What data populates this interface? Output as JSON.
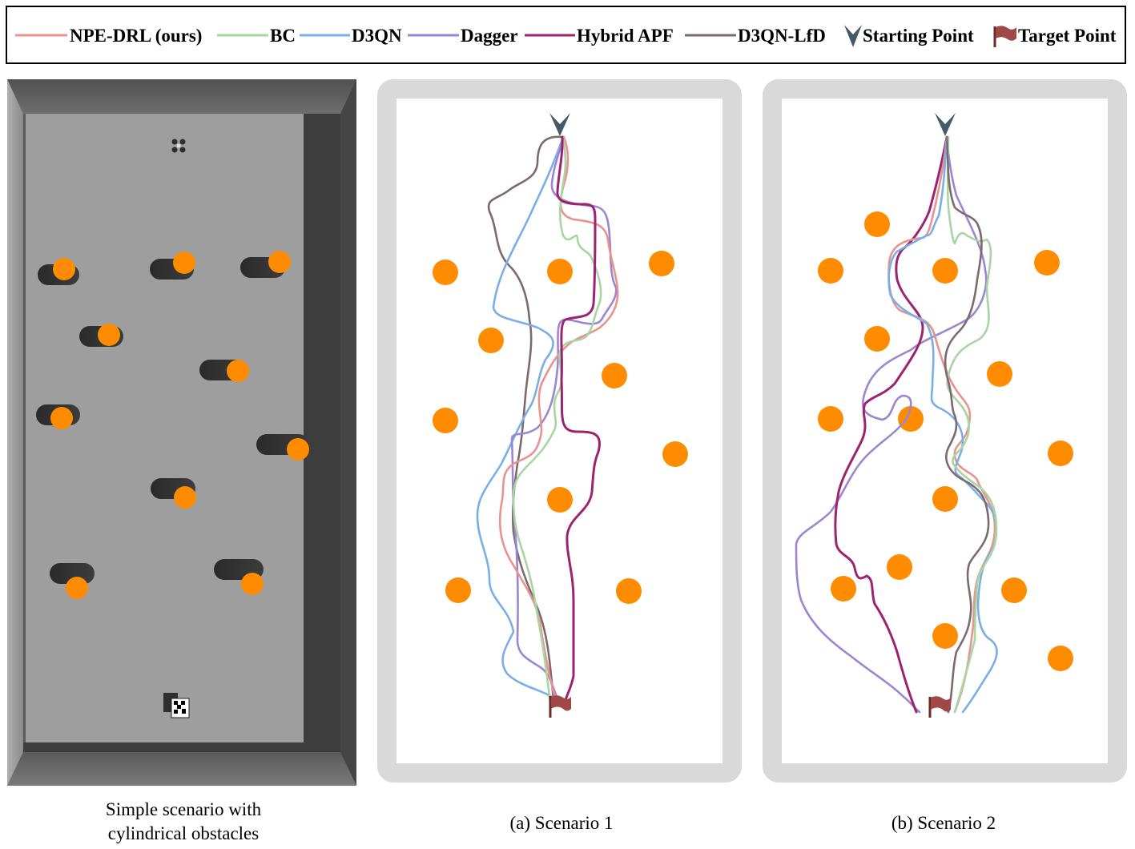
{
  "legend": {
    "items": [
      {
        "label": "NPE-DRL (ours)",
        "color": "#e8938d"
      },
      {
        "label": "BC",
        "color": "#a8d5a2"
      },
      {
        "label": "D3QN",
        "color": "#7aaee8"
      },
      {
        "label": "Dagger",
        "color": "#9a86d4"
      },
      {
        "label": "Hybrid APF",
        "color": "#9b2370"
      },
      {
        "label": "D3QN-LfD",
        "color": "#7d6a6e"
      }
    ],
    "start_label": "Starting Point",
    "target_label": "Target Point",
    "start_icon": "starting-point-arrow-icon",
    "target_icon": "target-flag-icon",
    "start_color": "#445a68",
    "target_color": "#a04848"
  },
  "captions": {
    "sim_line1": "Simple scenario with",
    "sim_line2": "cylindrical obstacles",
    "scenario1": "(a) Scenario 1",
    "scenario2": "(b) Scenario 2"
  },
  "colors": {
    "obstacle": "#ff8c00",
    "arena_border": "#d9d9d9",
    "sim_floor": "#9e9e9e",
    "sim_wall_dark": "#3d3d3d",
    "sim_wall_mid": "#6a6a6a"
  }
}
